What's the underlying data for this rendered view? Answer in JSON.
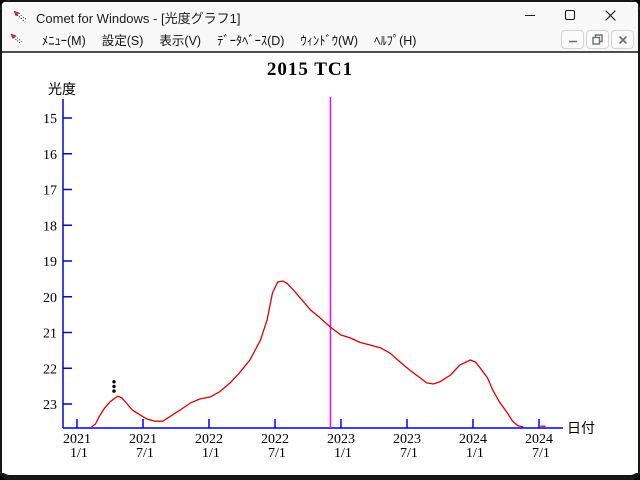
{
  "window": {
    "title": "Comet for Windows - [光度グラフ1]"
  },
  "menu": {
    "items": [
      {
        "id": "menu",
        "label": "ﾒﾆｭｰ(M)"
      },
      {
        "id": "settings",
        "label": "設定(S)"
      },
      {
        "id": "view",
        "label": "表示(V)"
      },
      {
        "id": "database",
        "label": "ﾃﾞｰﾀﾍﾞｰｽ(D)"
      },
      {
        "id": "window",
        "label": "ｳｨﾝﾄﾞｳ(W)"
      },
      {
        "id": "help",
        "label": "ﾍﾙﾌﾟ(H)"
      }
    ]
  },
  "chart_data": {
    "type": "line",
    "title": "2015 TC1",
    "xlabel": "日付",
    "ylabel": "光度",
    "y_axis_inverted": true,
    "ylim": [
      14.5,
      23.7
    ],
    "xlim": [
      2020.9,
      2024.68
    ],
    "grid": false,
    "y_ticks": [
      15,
      16,
      17,
      18,
      19,
      20,
      21,
      22,
      23
    ],
    "x_ticks": [
      {
        "t": 2021.0,
        "year": "2021",
        "day": "1/1"
      },
      {
        "t": 2021.5,
        "year": "2021",
        "day": "7/1"
      },
      {
        "t": 2022.0,
        "year": "2022",
        "day": "1/1"
      },
      {
        "t": 2022.5,
        "year": "2022",
        "day": "7/1"
      },
      {
        "t": 2023.0,
        "year": "2023",
        "day": "1/1"
      },
      {
        "t": 2023.5,
        "year": "2023",
        "day": "7/1"
      },
      {
        "t": 2024.0,
        "year": "2024",
        "day": "1/1"
      },
      {
        "t": 2024.5,
        "year": "2024",
        "day": "7/1"
      }
    ],
    "colors": {
      "axis": "#0000ee",
      "curve": "#dd0000",
      "event_line": "#ff00ff",
      "observations": "#000000"
    },
    "event_line": {
      "t": 2022.92
    },
    "series": [
      {
        "name": "predicted-light-curve",
        "points": [
          [
            2021.11,
            23.64
          ],
          [
            2021.14,
            23.56
          ],
          [
            2021.17,
            23.34
          ],
          [
            2021.21,
            23.11
          ],
          [
            2021.25,
            22.94
          ],
          [
            2021.29,
            22.83
          ],
          [
            2021.31,
            22.78
          ],
          [
            2021.34,
            22.83
          ],
          [
            2021.38,
            23.0
          ],
          [
            2021.42,
            23.17
          ],
          [
            2021.48,
            23.31
          ],
          [
            2021.53,
            23.42
          ],
          [
            2021.59,
            23.48
          ],
          [
            2021.65,
            23.48
          ],
          [
            2021.7,
            23.36
          ],
          [
            2021.78,
            23.17
          ],
          [
            2021.86,
            22.97
          ],
          [
            2021.93,
            22.86
          ],
          [
            2022.01,
            22.8
          ],
          [
            2022.08,
            22.66
          ],
          [
            2022.16,
            22.41
          ],
          [
            2022.23,
            22.13
          ],
          [
            2022.31,
            21.77
          ],
          [
            2022.39,
            21.21
          ],
          [
            2022.44,
            20.65
          ],
          [
            2022.48,
            19.9
          ],
          [
            2022.52,
            19.59
          ],
          [
            2022.56,
            19.56
          ],
          [
            2022.59,
            19.62
          ],
          [
            2022.64,
            19.81
          ],
          [
            2022.69,
            20.03
          ],
          [
            2022.77,
            20.37
          ],
          [
            2022.84,
            20.59
          ],
          [
            2022.92,
            20.85
          ],
          [
            2023.0,
            21.07
          ],
          [
            2023.07,
            21.15
          ],
          [
            2023.14,
            21.27
          ],
          [
            2023.22,
            21.35
          ],
          [
            2023.3,
            21.43
          ],
          [
            2023.37,
            21.57
          ],
          [
            2023.45,
            21.83
          ],
          [
            2023.52,
            22.05
          ],
          [
            2023.6,
            22.27
          ],
          [
            2023.65,
            22.41
          ],
          [
            2023.7,
            22.44
          ],
          [
            2023.75,
            22.38
          ],
          [
            2023.83,
            22.19
          ],
          [
            2023.9,
            21.91
          ],
          [
            2023.98,
            21.77
          ],
          [
            2024.02,
            21.83
          ],
          [
            2024.05,
            21.97
          ],
          [
            2024.11,
            22.27
          ],
          [
            2024.15,
            22.61
          ],
          [
            2024.2,
            22.94
          ],
          [
            2024.26,
            23.25
          ],
          [
            2024.3,
            23.48
          ],
          [
            2024.34,
            23.61
          ],
          [
            2024.38,
            23.64
          ]
        ]
      },
      {
        "name": "light-curve-end-segment",
        "points": [
          [
            2024.51,
            23.62
          ],
          [
            2024.55,
            23.62
          ]
        ]
      }
    ],
    "observations": {
      "name": "observed-points",
      "points": [
        [
          2021.28,
          22.38
        ],
        [
          2021.28,
          22.51
        ],
        [
          2021.28,
          22.64
        ]
      ]
    }
  }
}
